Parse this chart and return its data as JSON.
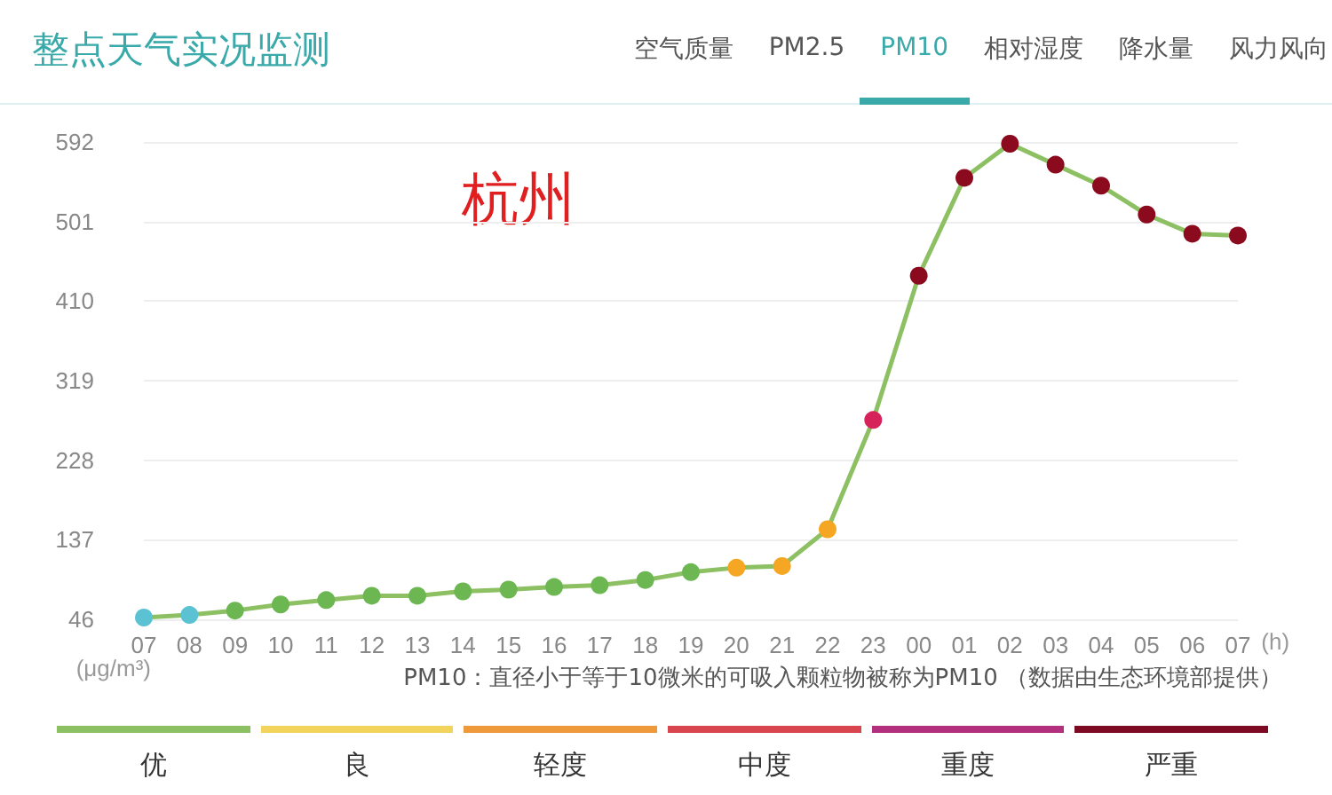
{
  "chart_data": [
    {
      "type": "line",
      "title": "整点天气实况监测",
      "ylabel": "(μg/m³)",
      "xlabel": "(h)",
      "annotations": [
        "杭州",
        "空气质量",
        "PM2.5",
        "PM10",
        "相对湿度",
        "降水量",
        "风力风向",
        "PM10：直径小于等于10微米的可吸入颗粒物被称为PM10 （数据由生态环境部提供）"
      ],
      "categories": [
        "07",
        "08",
        "09",
        "10",
        "11",
        "12",
        "13",
        "14",
        "15",
        "16",
        "17",
        "18",
        "19",
        "20",
        "21",
        "22",
        "23",
        "00",
        "01",
        "02",
        "03",
        "04",
        "05",
        "06",
        "07"
      ],
      "series": [
        {
          "color": "#8cc063",
          "values": [
            48,
            51,
            56,
            63,
            68,
            73,
            73,
            78,
            80,
            83,
            85,
            91,
            100,
            105,
            107,
            149,
            274,
            439,
            551,
            590,
            566,
            542,
            509,
            487,
            485
          ],
          "colors": [
            "#5bc2d4",
            "#5bc2d4",
            "#6cb752",
            "#6cb752",
            "#6cb752",
            "#6cb752",
            "#6cb752",
            "#6cb752",
            "#6cb752",
            "#6cb752",
            "#6cb752",
            "#6cb752",
            "#6cb752",
            "#f5a623",
            "#f5a623",
            "#f5a623",
            "#d6245a",
            "#8b0a1e",
            "#8b0a1e",
            "#8b0a1e",
            "#8b0a1e",
            "#8b0a1e",
            "#8b0a1e",
            "#8b0a1e",
            "#8b0a1e"
          ]
        }
      ],
      "ylim": [
        46,
        592
      ],
      "yticks": [
        46,
        137,
        228,
        319,
        410,
        501,
        592
      ],
      "grid": "y",
      "marker": "circle",
      "line_style": "solid"
    },
    {
      "type": "other",
      "categories": [
        "优",
        "良",
        "轻度",
        "中度",
        "重度",
        "严重"
      ],
      "colors": [
        "#8cc063",
        "#f2d35c",
        "#ef9a3a",
        "#d9454f",
        "#b2307d",
        "#7d0a23"
      ]
    }
  ]
}
